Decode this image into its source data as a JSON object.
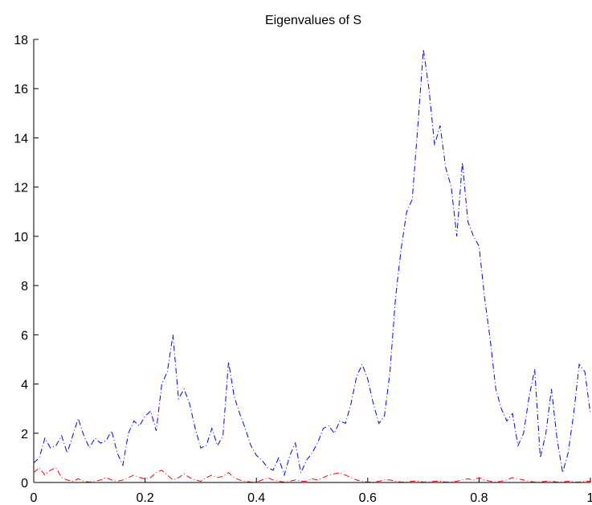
{
  "chart_data": {
    "type": "line",
    "title": "Eigenvalues of S",
    "xlabel": "",
    "ylabel": "",
    "xlim": [
      0,
      1
    ],
    "ylim": [
      0,
      18
    ],
    "xticks": [
      0,
      0.2,
      0.4,
      0.6,
      0.8,
      1
    ],
    "xtick_labels": [
      "0",
      "0.2",
      "0.4",
      "0.6",
      "0.8",
      "1"
    ],
    "yticks": [
      0,
      2,
      4,
      6,
      8,
      10,
      12,
      14,
      16,
      18
    ],
    "ytick_labels": [
      "0",
      "2",
      "4",
      "6",
      "8",
      "10",
      "12",
      "14",
      "16",
      "18"
    ],
    "grid": false,
    "series": [
      {
        "color": "#0000ff",
        "style": "dash-dot",
        "x": [
          0,
          0.01,
          0.02,
          0.03,
          0.04,
          0.05,
          0.06,
          0.07,
          0.08,
          0.09,
          0.1,
          0.11,
          0.12,
          0.13,
          0.14,
          0.15,
          0.16,
          0.17,
          0.18,
          0.19,
          0.2,
          0.21,
          0.22,
          0.23,
          0.24,
          0.25,
          0.26,
          0.27,
          0.28,
          0.29,
          0.3,
          0.31,
          0.32,
          0.33,
          0.34,
          0.35,
          0.36,
          0.37,
          0.38,
          0.39,
          0.4,
          0.41,
          0.42,
          0.43,
          0.44,
          0.45,
          0.46,
          0.47,
          0.48,
          0.49,
          0.5,
          0.51,
          0.52,
          0.53,
          0.54,
          0.55,
          0.56,
          0.57,
          0.58,
          0.59,
          0.6,
          0.61,
          0.62,
          0.63,
          0.64,
          0.65,
          0.66,
          0.67,
          0.68,
          0.69,
          0.7,
          0.71,
          0.72,
          0.73,
          0.74,
          0.75,
          0.76,
          0.77,
          0.78,
          0.79,
          0.8,
          0.81,
          0.82,
          0.83,
          0.84,
          0.85,
          0.86,
          0.87,
          0.88,
          0.89,
          0.9,
          0.91,
          0.92,
          0.93,
          0.94,
          0.95,
          0.96,
          0.97,
          0.98,
          0.99,
          1
        ],
        "y": [
          0.8,
          1.0,
          1.8,
          1.4,
          1.5,
          1.9,
          1.2,
          1.9,
          2.6,
          1.9,
          1.4,
          1.8,
          1.6,
          1.7,
          2.1,
          1.2,
          0.7,
          2.0,
          2.5,
          2.3,
          2.7,
          2.9,
          2.1,
          4.0,
          4.5,
          6.0,
          3.4,
          3.8,
          3.2,
          2.2,
          1.4,
          1.5,
          2.2,
          1.5,
          1.9,
          4.9,
          3.5,
          2.8,
          2.2,
          1.5,
          1.1,
          0.9,
          0.6,
          0.5,
          1.0,
          0.3,
          1.1,
          1.6,
          0.4,
          0.9,
          1.2,
          1.6,
          2.2,
          2.3,
          2.0,
          2.5,
          2.4,
          3.2,
          4.3,
          4.8,
          4.2,
          3.2,
          2.4,
          2.7,
          4.5,
          7.5,
          9.5,
          11.0,
          11.5,
          14.5,
          17.6,
          16.0,
          13.7,
          14.5,
          12.8,
          12.0,
          10.0,
          13.0,
          10.6,
          10.0,
          9.6,
          7.5,
          5.8,
          3.8,
          3.0,
          2.5,
          2.8,
          1.5,
          2.0,
          3.5,
          4.6,
          1.0,
          2.0,
          3.8,
          1.8,
          0.4,
          1.2,
          2.8,
          4.8,
          4.5,
          2.8
        ]
      },
      {
        "color": "#ff0000",
        "style": "dash-dot",
        "x": [
          0,
          0.01,
          0.02,
          0.03,
          0.04,
          0.05,
          0.06,
          0.07,
          0.08,
          0.09,
          0.1,
          0.11,
          0.12,
          0.13,
          0.14,
          0.15,
          0.16,
          0.17,
          0.18,
          0.19,
          0.2,
          0.21,
          0.22,
          0.23,
          0.24,
          0.25,
          0.26,
          0.27,
          0.28,
          0.29,
          0.3,
          0.31,
          0.32,
          0.33,
          0.34,
          0.35,
          0.36,
          0.37,
          0.38,
          0.39,
          0.4,
          0.41,
          0.42,
          0.43,
          0.44,
          0.45,
          0.46,
          0.47,
          0.48,
          0.49,
          0.5,
          0.51,
          0.52,
          0.53,
          0.54,
          0.55,
          0.56,
          0.57,
          0.58,
          0.59,
          0.6,
          0.61,
          0.62,
          0.63,
          0.64,
          0.65,
          0.66,
          0.67,
          0.68,
          0.69,
          0.7,
          0.71,
          0.72,
          0.73,
          0.74,
          0.75,
          0.76,
          0.77,
          0.78,
          0.79,
          0.8,
          0.81,
          0.82,
          0.83,
          0.84,
          0.85,
          0.86,
          0.87,
          0.88,
          0.89,
          0.9,
          0.91,
          0.92,
          0.93,
          0.94,
          0.95,
          0.96,
          0.97,
          0.98,
          0.99,
          1
        ],
        "y": [
          0.4,
          0.6,
          0.3,
          0.5,
          0.6,
          0.2,
          0.1,
          0.05,
          0.15,
          0.05,
          0.02,
          0.05,
          0.1,
          0.2,
          0.1,
          0.05,
          0.1,
          0.2,
          0.3,
          0.2,
          0.15,
          0.2,
          0.4,
          0.5,
          0.3,
          0.1,
          0.2,
          0.35,
          0.2,
          0.1,
          0.05,
          0.2,
          0.3,
          0.2,
          0.25,
          0.4,
          0.2,
          0.1,
          0.05,
          0.02,
          0.02,
          0.1,
          0.2,
          0.1,
          0.05,
          0.02,
          0.05,
          0.1,
          0.05,
          0.05,
          0.15,
          0.1,
          0.2,
          0.3,
          0.35,
          0.4,
          0.3,
          0.2,
          0.1,
          0.05,
          0.02,
          0.02,
          0.05,
          0.1,
          0.1,
          0.05,
          0.02,
          0.02,
          0.05,
          0.05,
          0.02,
          0.02,
          0.05,
          0.05,
          0.02,
          0.02,
          0.05,
          0.1,
          0.15,
          0.1,
          0.2,
          0.1,
          0.05,
          0.02,
          0.05,
          0.1,
          0.2,
          0.15,
          0.1,
          0.05,
          0.02,
          0.02,
          0.05,
          0.05,
          0.02,
          0.02,
          0.05,
          0.02,
          0.02,
          0.05,
          0.05
        ]
      }
    ]
  }
}
